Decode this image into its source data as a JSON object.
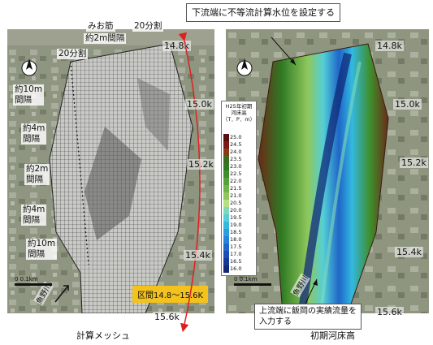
{
  "left_panel": {
    "caption": "計算メッシュ",
    "range_badge": "区間14.8～15.6K",
    "river_label": "魚野川",
    "scale_label": "0      0.1km",
    "top_labels": {
      "mio": "みお筋",
      "mio_spacing": "約2m間隔",
      "left_div": "20分割",
      "right_div": "20分割"
    },
    "spacing_labels": [
      {
        "text": "約10m",
        "sub": "間隔"
      },
      {
        "text": "約4m",
        "sub": "間隔"
      },
      {
        "text": "約2m",
        "sub": "間隔"
      },
      {
        "text": "約4m",
        "sub": "間隔"
      },
      {
        "text": "約10m",
        "sub": "間隔"
      }
    ],
    "km_labels": [
      "14.8k",
      "15.0k",
      "15.2k",
      "15.4k",
      "15.6k"
    ]
  },
  "right_panel": {
    "caption": "初期河床高",
    "callout_top": "下流端に不等流計算水位を設定する",
    "callout_bottom": "上流端に飯岡の実績流量を入力する",
    "river_label": "魚野川",
    "scale_label": "0      0.1km",
    "km_labels": [
      "14.8k",
      "15.0k",
      "15.2k",
      "15.4k",
      "15.6k"
    ],
    "legend": {
      "title": "H25年初期河床高",
      "unit": "（T．P．m）",
      "levels": [
        "25.0",
        "24.5",
        "24.0",
        "23.5",
        "23.0",
        "22.5",
        "22.0",
        "21.5",
        "21.0",
        "20.5",
        "20.0",
        "19.5",
        "19.0",
        "18.5",
        "18.0",
        "17.5",
        "17.0",
        "16.5",
        "16.0"
      ],
      "colors": [
        "#5a0f0f",
        "#7a1a16",
        "#8a3a1a",
        "#3d6a1f",
        "#2f7a24",
        "#3e8f2c",
        "#55a23a",
        "#6fb54a",
        "#8fc75c",
        "#b6de83",
        "#7fd9b8",
        "#54cfd6",
        "#33b8e0",
        "#2a9ce0",
        "#2583d8",
        "#1f66c8",
        "#1a4eb4",
        "#16389a",
        "#102a78"
      ]
    }
  },
  "colors": {
    "badge": "#f3c21d",
    "arrow": "#e02020"
  }
}
